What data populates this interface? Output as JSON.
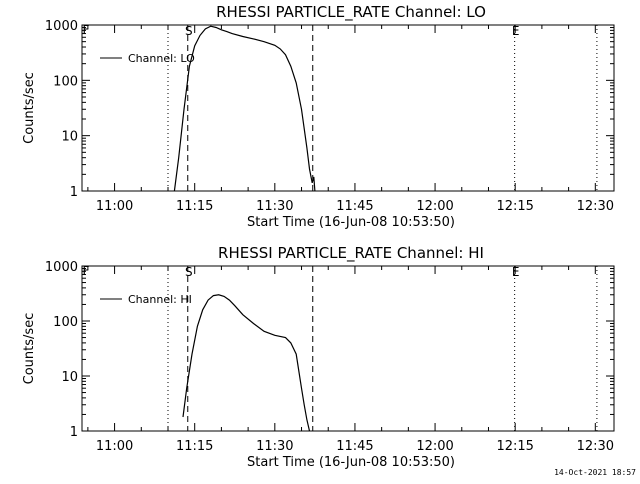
{
  "chart_data": [
    {
      "type": "line",
      "title": "RHESSI PARTICLE_RATE Channel: LO",
      "xlabel": "Start Time (16-Jun-08 10:53:50)",
      "ylabel": "Counts/sec",
      "yscale": "log",
      "ylim": [
        1,
        1000
      ],
      "y_ticks": [
        "1",
        "10",
        "100",
        "1000"
      ],
      "x_tick_labels": [
        "11:00",
        "11:15",
        "11:30",
        "11:45",
        "12:00",
        "12:15",
        "12:30"
      ],
      "x_tick_minutes": [
        0,
        15,
        30,
        45,
        60,
        75,
        90
      ],
      "xlim_minutes": [
        -6.1,
        93.5
      ],
      "vlines": [
        {
          "minutes": 10.0,
          "style": "dotted",
          "label": ""
        },
        {
          "minutes": 13.7,
          "style": "dashed",
          "label": "S"
        },
        {
          "minutes": 37.1,
          "style": "dashed",
          "label": ""
        },
        {
          "minutes": 74.9,
          "style": "dotted",
          "label": "E"
        },
        {
          "minutes": 90.3,
          "style": "dotted",
          "label": ""
        }
      ],
      "corner_label": "F",
      "legend": {
        "label": "Channel: LO",
        "position": "top-left"
      },
      "series": [
        {
          "name": "Channel: LO",
          "x_minutes": [
            11.2,
            12.0,
            13.0,
            14.0,
            15.0,
            16.0,
            17.0,
            18.0,
            19.0,
            20.0,
            21.0,
            22.0,
            24.0,
            26.0,
            28.0,
            30.0,
            31.0,
            32.0,
            33.0,
            34.0,
            35.0,
            36.0,
            36.5,
            37.0,
            37.3,
            37.5
          ],
          "values": [
            1.0,
            4,
            30,
            180,
            420,
            650,
            850,
            950,
            900,
            820,
            760,
            700,
            620,
            560,
            500,
            430,
            370,
            290,
            180,
            90,
            30,
            6,
            2.5,
            1.4,
            1.8,
            1.0
          ]
        }
      ],
      "grid": false
    },
    {
      "type": "line",
      "title": "RHESSI PARTICLE_RATE Channel: HI",
      "xlabel": "Start Time (16-Jun-08 10:53:50)",
      "ylabel": "Counts/sec",
      "yscale": "log",
      "ylim": [
        1,
        1000
      ],
      "y_ticks": [
        "1",
        "10",
        "100",
        "1000"
      ],
      "x_tick_labels": [
        "11:00",
        "11:15",
        "11:30",
        "11:45",
        "12:00",
        "12:15",
        "12:30"
      ],
      "x_tick_minutes": [
        0,
        15,
        30,
        45,
        60,
        75,
        90
      ],
      "xlim_minutes": [
        -6.1,
        93.5
      ],
      "vlines": [
        {
          "minutes": 10.0,
          "style": "dotted",
          "label": ""
        },
        {
          "minutes": 13.7,
          "style": "dashed",
          "label": "S"
        },
        {
          "minutes": 37.1,
          "style": "dashed",
          "label": ""
        },
        {
          "minutes": 74.9,
          "style": "dotted",
          "label": "E"
        },
        {
          "minutes": 90.3,
          "style": "dotted",
          "label": ""
        }
      ],
      "corner_label": "F",
      "legend": {
        "label": "Channel: HI",
        "position": "top-left"
      },
      "series": [
        {
          "name": "Channel: HI",
          "x_minutes": [
            12.8,
            13.5,
            14.5,
            15.5,
            16.5,
            17.5,
            18.5,
            19.5,
            20.5,
            21.5,
            22.5,
            24.0,
            26.0,
            28.0,
            30.0,
            32.0,
            33.0,
            34.0,
            35.0,
            35.5,
            36.0,
            36.5
          ],
          "values": [
            1.8,
            6,
            25,
            80,
            160,
            240,
            290,
            300,
            280,
            240,
            190,
            130,
            90,
            65,
            55,
            50,
            40,
            25,
            6,
            3,
            1.6,
            1.0
          ]
        }
      ],
      "grid": false
    }
  ],
  "footer": {
    "timestamp": "14-Oct-2021 18:57"
  }
}
